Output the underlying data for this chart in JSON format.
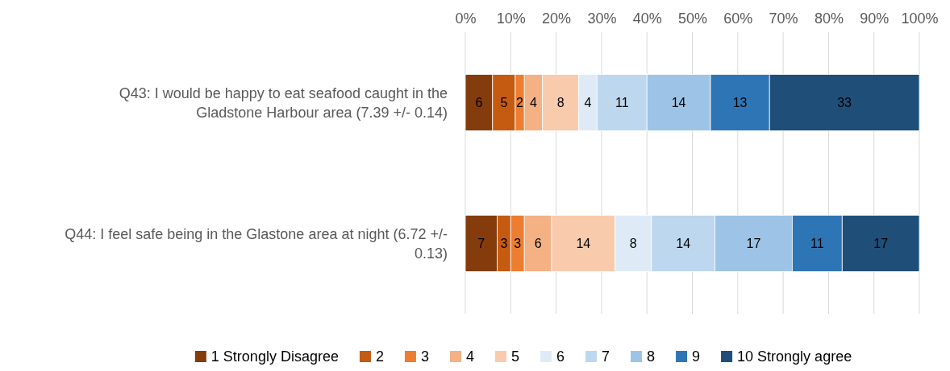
{
  "chart_data": {
    "type": "bar",
    "orientation": "horizontal",
    "stacked": true,
    "categories": [
      "Q43: I would be happy to eat seafood caught in the Gladstone Harbour area (7.39 +/- 0.14)",
      "Q44: I feel safe being in the Glastone area at night (6.72 +/- 0.13)"
    ],
    "series": [
      {
        "name": "1 Strongly Disagree",
        "color": "#843c0c",
        "values": [
          6,
          7
        ]
      },
      {
        "name": "2",
        "color": "#c55a11",
        "values": [
          5,
          3
        ]
      },
      {
        "name": "3",
        "color": "#ed7d31",
        "values": [
          2,
          3
        ]
      },
      {
        "name": "4",
        "color": "#f4b183",
        "values": [
          4,
          6
        ]
      },
      {
        "name": "5",
        "color": "#f8cbad",
        "values": [
          8,
          14
        ]
      },
      {
        "name": "6",
        "color": "#deebf7",
        "values": [
          4,
          8
        ]
      },
      {
        "name": "7",
        "color": "#bdd7ee",
        "values": [
          11,
          14
        ]
      },
      {
        "name": "8",
        "color": "#9dc3e6",
        "values": [
          14,
          17
        ]
      },
      {
        "name": "9",
        "color": "#2e75b6",
        "values": [
          13,
          11
        ]
      },
      {
        "name": "10 Strongly agree",
        "color": "#1f4e79",
        "values": [
          33,
          17
        ]
      }
    ],
    "xlim": [
      0,
      100
    ],
    "xticks": [
      {
        "value": 0,
        "label": "0%"
      },
      {
        "value": 10,
        "label": "10%"
      },
      {
        "value": 20,
        "label": "20%"
      },
      {
        "value": 30,
        "label": "30%"
      },
      {
        "value": 40,
        "label": "40%"
      },
      {
        "value": 50,
        "label": "50%"
      },
      {
        "value": 60,
        "label": "60%"
      },
      {
        "value": 70,
        "label": "70%"
      },
      {
        "value": 80,
        "label": "80%"
      },
      {
        "value": 90,
        "label": "90%"
      },
      {
        "value": 100,
        "label": "100%"
      }
    ],
    "grid": "x",
    "legend": "bottom",
    "data_labels": true
  }
}
